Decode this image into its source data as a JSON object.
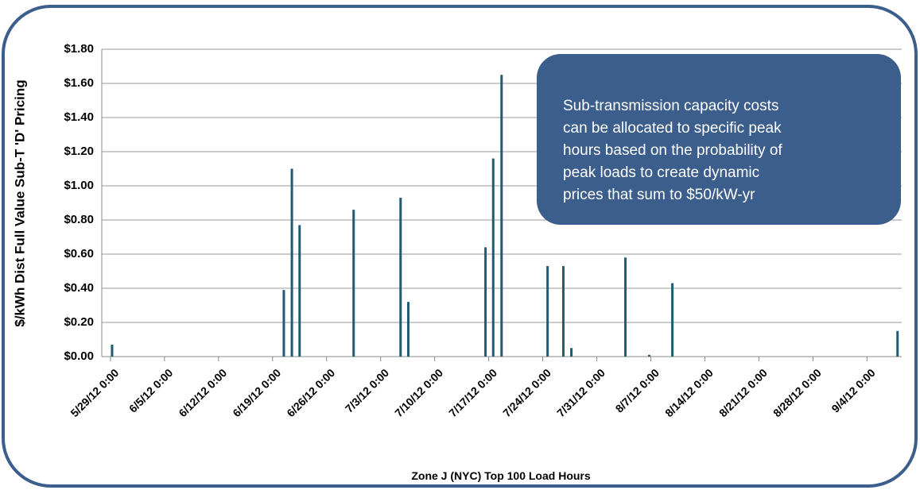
{
  "chart_data": {
    "type": "bar",
    "ylabel": "$/kWh Dist Full Value Sub-T 'D' Pricing",
    "xlabel": "Zone J (NYC) Top 100 Load Hours",
    "annotation": [
      "Sub-transmission capacity costs",
      "can be allocated to specific peak",
      "hours based on the probability of",
      "peak loads to create dynamic",
      "prices that sum to $50/kW-yr"
    ],
    "x": [
      "5/29/12 5:00",
      "6/20/12 11:00",
      "6/21/12 12:00",
      "6/22/12 12:00",
      "6/29/12 12:00",
      "7/5/12 14:00",
      "7/6/12 14:00",
      "7/16/12 14:00",
      "7/17/12 14:00",
      "7/18/12 16:00",
      "7/24/12 15:00",
      "7/26/12 16:00",
      "7/27/12 17:00",
      "8/3/12 17:00",
      "8/6/12 19:00",
      "8/9/12 19:00",
      "9/7/12 23:00"
    ],
    "values": [
      0.07,
      0.39,
      1.1,
      0.77,
      0.86,
      0.93,
      0.32,
      0.64,
      1.16,
      1.65,
      0.53,
      0.53,
      0.05,
      0.58,
      0.01,
      0.43,
      0.15
    ],
    "color": "#1f5b73",
    "xlim": [
      "5/27/12 21:00",
      "9/8/12 12:00"
    ],
    "xticks": [
      "5/29/12 0:00",
      "6/5/12 0:00",
      "6/12/12 0:00",
      "6/19/12 0:00",
      "6/26/12 0:00",
      "7/3/12 0:00",
      "7/10/12 0:00",
      "7/17/12 0:00",
      "7/24/12 0:00",
      "7/31/12 0:00",
      "8/7/12 0:00",
      "8/14/12 0:00",
      "8/21/12 0:00",
      "8/28/12 0:00",
      "9/4/12 0:00"
    ],
    "ylim": [
      0,
      1.8
    ],
    "yticks": [
      {
        "value": 0,
        "label": "$0.00"
      },
      {
        "value": 0.2,
        "label": "$0.20"
      },
      {
        "value": 0.4,
        "label": "$0.40"
      },
      {
        "value": 0.6,
        "label": "$0.60"
      },
      {
        "value": 0.8,
        "label": "$0.80"
      },
      {
        "value": 1.0,
        "label": "$1.00"
      },
      {
        "value": 1.2,
        "label": "$1.20"
      },
      {
        "value": 1.4,
        "label": "$1.40"
      },
      {
        "value": 1.6,
        "label": "$1.60"
      },
      {
        "value": 1.8,
        "label": "$1.80"
      }
    ],
    "grid": true
  }
}
